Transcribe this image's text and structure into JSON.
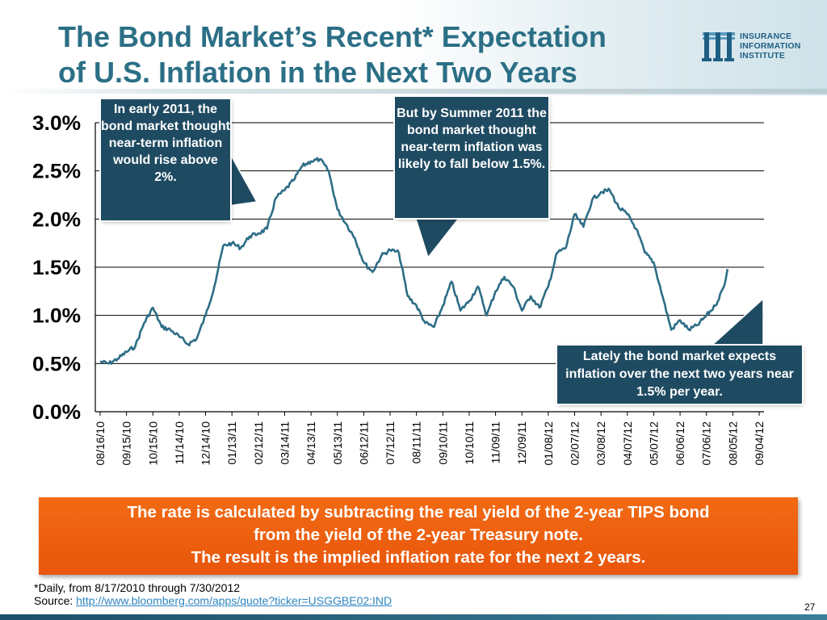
{
  "title": {
    "line1": "The Bond Market’s Recent* Expectation",
    "line2": "of U.S. Inflation in the Next Two Years"
  },
  "logo": {
    "line1": "INSURANCE",
    "line2": "INFORMATION",
    "line3": "INSTITUTE",
    "icon": "iii-logo-icon"
  },
  "callouts": {
    "early_2011": "In early 2011, the bond market thought near-term inflation would rise above 2%.",
    "summer_2011": "But by Summer 2011 the bond market thought near-term inflation was likely to fall below 1.5%.",
    "lately": "Lately the bond market expects inflation over the next two years near 1.5% per year."
  },
  "note_box": {
    "line1": "The rate is calculated by subtracting the real yield of the 2-year TIPS bond",
    "line2": "from the yield of the 2-year Treasury note.",
    "line3": "The result is the implied inflation rate for the next 2 years."
  },
  "footnote": "*Daily, from 8/17/2010 through 7/30/2012",
  "source_label": "Source: ",
  "source_url": "http://www.bloomberg.com/apps/quote?ticker=USGGBE02:IND",
  "page_number": "27",
  "colors": {
    "title": "#2b6f86",
    "line": "#2e6d86",
    "callout": "#1f4b62",
    "orange": "#ee6410",
    "link": "#2e86c1"
  },
  "chart_data": {
    "type": "line",
    "ylim": [
      0,
      3.0
    ],
    "ytick_labels": [
      "0.0%",
      "0.5%",
      "1.0%",
      "1.5%",
      "2.0%",
      "2.5%",
      "3.0%"
    ],
    "ytick_values": [
      0,
      0.5,
      1.0,
      1.5,
      2.0,
      2.5,
      3.0
    ],
    "x_tick_labels": [
      "08/16/10",
      "09/15/10",
      "10/15/10",
      "11/14/10",
      "12/14/10",
      "01/13/11",
      "02/12/11",
      "03/14/11",
      "04/13/11",
      "05/13/11",
      "06/12/11",
      "07/12/11",
      "08/11/11",
      "09/10/11",
      "10/10/11",
      "11/09/11",
      "12/09/11",
      "01/08/12",
      "02/07/12",
      "03/08/12",
      "04/07/12",
      "05/07/12",
      "06/06/12",
      "07/06/12",
      "08/05/12",
      "09/04/12"
    ],
    "grid": "horizontal",
    "legend": "none",
    "series": [
      {
        "x": [
          "08/16/10",
          "08/26/10",
          "09/05/10",
          "09/15/10",
          "09/25/10",
          "10/05/10",
          "10/15/10",
          "10/25/10",
          "11/04/10",
          "11/14/10",
          "11/24/10",
          "12/04/10",
          "12/14/10",
          "12/24/10",
          "01/03/11",
          "01/13/11",
          "01/23/11",
          "02/02/11",
          "02/12/11",
          "02/22/11",
          "03/04/11",
          "03/14/11",
          "03/24/11",
          "04/03/11",
          "04/13/11",
          "04/23/11",
          "05/03/11",
          "05/13/11",
          "05/23/11",
          "06/02/11",
          "06/12/11",
          "06/22/11",
          "07/02/11",
          "07/12/11",
          "07/22/11",
          "08/01/11",
          "08/11/11",
          "08/21/11",
          "08/31/11",
          "09/10/11",
          "09/20/11",
          "09/30/11",
          "10/10/11",
          "10/20/11",
          "10/30/11",
          "11/09/11",
          "11/19/11",
          "11/29/11",
          "12/09/11",
          "12/19/11",
          "12/29/11",
          "01/08/12",
          "01/18/12",
          "01/28/12",
          "02/07/12",
          "02/17/12",
          "02/27/12",
          "03/08/12",
          "03/18/12",
          "03/28/12",
          "04/07/12",
          "04/17/12",
          "04/27/12",
          "05/07/12",
          "05/17/12",
          "05/27/12",
          "06/06/12",
          "06/16/12",
          "06/26/12",
          "07/06/12",
          "07/16/12",
          "07/26/12",
          "07/30/12"
        ],
        "values": [
          0.52,
          0.5,
          0.55,
          0.62,
          0.68,
          0.92,
          1.08,
          0.88,
          0.85,
          0.78,
          0.7,
          0.76,
          1.0,
          1.3,
          1.72,
          1.75,
          1.7,
          1.82,
          1.85,
          1.9,
          2.22,
          2.3,
          2.4,
          2.55,
          2.6,
          2.62,
          2.5,
          2.1,
          1.95,
          1.8,
          1.55,
          1.45,
          1.62,
          1.68,
          1.65,
          1.2,
          1.1,
          0.92,
          0.88,
          1.1,
          1.35,
          1.05,
          1.15,
          1.3,
          1.0,
          1.25,
          1.4,
          1.3,
          1.05,
          1.2,
          1.08,
          1.3,
          1.65,
          1.7,
          2.05,
          1.92,
          2.2,
          2.28,
          2.3,
          2.12,
          2.05,
          1.9,
          1.65,
          1.55,
          1.2,
          0.85,
          0.95,
          0.85,
          0.9,
          1.0,
          1.1,
          1.3,
          1.48
        ]
      }
    ]
  }
}
